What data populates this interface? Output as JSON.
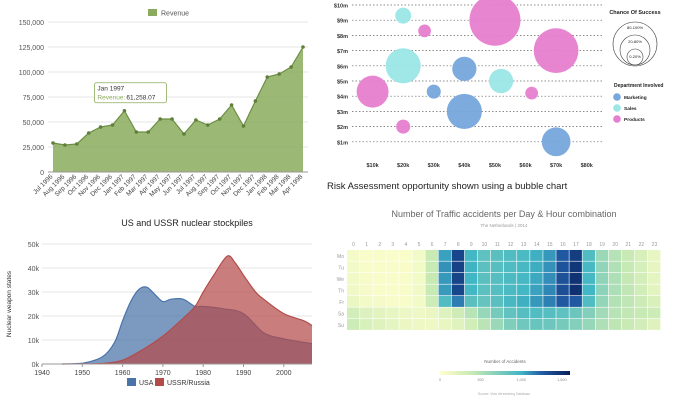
{
  "chart_data": [
    {
      "id": "revenue",
      "type": "area",
      "legend": "Revenue",
      "color": "#8aab5d",
      "ylim": [
        0,
        150000
      ],
      "yticks": [
        0,
        25000,
        50000,
        75000,
        100000,
        125000,
        150000
      ],
      "ytick_labels": [
        "0",
        "25,000",
        "50,000",
        "75,000",
        "100,000",
        "125,000",
        "150,000"
      ],
      "categories": [
        "Jul 1996",
        "Aug 1996",
        "Sep 1996",
        "Oct 1996",
        "Nov 1996",
        "Dec 1996",
        "Jan 1997",
        "Feb 1997",
        "Mar 1997",
        "Apr 1997",
        "May 1997",
        "Jun 1997",
        "Jul 1997",
        "Aug 1997",
        "Sep 1997",
        "Oct 1997",
        "Nov 1997",
        "Dec 1997",
        "Jan 1998",
        "Feb 1998",
        "Mar 1998",
        "Apr 1998"
      ],
      "values": [
        29000,
        27000,
        28000,
        39000,
        45000,
        47000,
        61258,
        40000,
        40000,
        53000,
        53000,
        38000,
        52000,
        47000,
        53000,
        67000,
        46000,
        71000,
        95000,
        98000,
        105000,
        125000
      ],
      "tooltip": {
        "title": "Jan 1997",
        "label": "Revenue:",
        "value": "61,258.07",
        "index": 6
      }
    },
    {
      "id": "risk",
      "type": "scatter",
      "caption": "Risk Assessment opportunity shown using a bubble chart",
      "xticks": [
        10,
        20,
        30,
        40,
        50,
        60,
        70,
        80
      ],
      "xtick_labels": [
        "$10k",
        "$20k",
        "$30k",
        "$40k",
        "$50k",
        "$60k",
        "$70k",
        "$80k"
      ],
      "yticks": [
        1,
        2,
        3,
        4,
        5,
        6,
        7,
        8,
        9,
        10
      ],
      "ytick_labels": [
        "$1m",
        "$2m",
        "$3m",
        "$4m",
        "$5m",
        "$6m",
        "$7m",
        "$8m",
        "$9m",
        "$10m"
      ],
      "xlim": [
        0,
        85
      ],
      "ylim": [
        0,
        10
      ],
      "size_legend_title": "Chance Of Success",
      "size_legend": [
        "80-100%",
        "20-80%",
        "0-20%"
      ],
      "category_legend_title": "Department Involved",
      "categories": [
        {
          "name": "Marketing",
          "color": "#77a7dc"
        },
        {
          "name": "Sales",
          "color": "#9be6e6"
        },
        {
          "name": "Products",
          "color": "#e67ecf"
        }
      ],
      "points": [
        {
          "x": 20,
          "y": 9.3,
          "r": 0.25,
          "cat": 1
        },
        {
          "x": 27,
          "y": 8.3,
          "r": 0.2,
          "cat": 2
        },
        {
          "x": 20,
          "y": 6.0,
          "r": 0.55,
          "cat": 1
        },
        {
          "x": 10,
          "y": 4.3,
          "r": 0.5,
          "cat": 2
        },
        {
          "x": 30,
          "y": 4.3,
          "r": 0.22,
          "cat": 0
        },
        {
          "x": 40,
          "y": 5.8,
          "r": 0.38,
          "cat": 0
        },
        {
          "x": 40,
          "y": 3.0,
          "r": 0.55,
          "cat": 0
        },
        {
          "x": 50,
          "y": 9.0,
          "r": 0.8,
          "cat": 2
        },
        {
          "x": 52,
          "y": 5.0,
          "r": 0.38,
          "cat": 1
        },
        {
          "x": 62,
          "y": 4.2,
          "r": 0.2,
          "cat": 2
        },
        {
          "x": 70,
          "y": 7.0,
          "r": 0.7,
          "cat": 2
        },
        {
          "x": 20,
          "y": 2.0,
          "r": 0.22,
          "cat": 2
        },
        {
          "x": 70,
          "y": 1.0,
          "r": 0.45,
          "cat": 0
        }
      ]
    },
    {
      "id": "nuclear",
      "type": "area",
      "title": "US and USSR nuclear stockpiles",
      "ylabel": "Nuclear weapon states",
      "xlim": [
        1940,
        2007
      ],
      "xticks": [
        1940,
        1950,
        1960,
        1970,
        1980,
        1990,
        2000
      ],
      "ylim": [
        0,
        50000
      ],
      "yticks": [
        0,
        10000,
        20000,
        30000,
        40000,
        50000
      ],
      "ytick_labels": [
        "0k",
        "10k",
        "20k",
        "30k",
        "40k",
        "50k"
      ],
      "series": [
        {
          "name": "USA",
          "color": "#4a73a8",
          "x": [
            1945,
            1950,
            1955,
            1958,
            1960,
            1962,
            1964,
            1966,
            1968,
            1970,
            1972,
            1975,
            1978,
            1980,
            1985,
            1990,
            1995,
            2000,
            2005,
            2007
          ],
          "y": [
            0,
            300,
            3000,
            9000,
            18000,
            26000,
            31000,
            32000,
            29000,
            26000,
            27000,
            27000,
            24000,
            24000,
            23000,
            21000,
            13000,
            10500,
            9000,
            8500
          ]
        },
        {
          "name": "USSR/Russia",
          "color": "#b44b4b",
          "x": [
            1945,
            1950,
            1955,
            1960,
            1965,
            1970,
            1975,
            1978,
            1980,
            1983,
            1986,
            1988,
            1990,
            1993,
            1995,
            2000,
            2005,
            2007
          ],
          "y": [
            0,
            50,
            200,
            1600,
            6000,
            11600,
            19000,
            24000,
            30000,
            38000,
            45000,
            42000,
            37000,
            30000,
            27000,
            21000,
            18000,
            16000
          ]
        }
      ]
    },
    {
      "id": "traffic",
      "type": "heatmap",
      "title": "Number of Traffic accidents per Day & Hour combination",
      "subtitle": "The Netherlands | 2014",
      "hours": [
        "0",
        "1",
        "2",
        "3",
        "4",
        "5",
        "6",
        "7",
        "8",
        "9",
        "10",
        "11",
        "12",
        "13",
        "14",
        "15",
        "16",
        "17",
        "18",
        "19",
        "20",
        "21",
        "22",
        "23"
      ],
      "days": [
        "Mo",
        "Tu",
        "We",
        "Th",
        "Fr",
        "Sa",
        "Su"
      ],
      "values": [
        [
          70,
          55,
          48,
          44,
          45,
          90,
          380,
          1050,
          1380,
          980,
          860,
          880,
          920,
          950,
          1010,
          1080,
          1280,
          1420,
          920,
          600,
          480,
          380,
          290,
          170
        ],
        [
          90,
          60,
          52,
          48,
          46,
          95,
          390,
          1100,
          1400,
          1000,
          870,
          890,
          930,
          960,
          1020,
          1100,
          1310,
          1460,
          960,
          640,
          500,
          400,
          300,
          180
        ],
        [
          100,
          65,
          55,
          50,
          48,
          95,
          395,
          1080,
          1390,
          990,
          880,
          900,
          940,
          970,
          1030,
          1110,
          1320,
          1480,
          970,
          650,
          510,
          410,
          310,
          190
        ],
        [
          110,
          70,
          58,
          52,
          50,
          98,
          390,
          1070,
          1380,
          980,
          870,
          900,
          950,
          980,
          1050,
          1130,
          1330,
          1490,
          990,
          660,
          520,
          430,
          330,
          200
        ],
        [
          150,
          90,
          70,
          60,
          55,
          90,
          350,
          920,
          1160,
          880,
          830,
          880,
          960,
          1010,
          1080,
          1150,
          1280,
          1280,
          920,
          630,
          490,
          430,
          360,
          270
        ],
        [
          320,
          250,
          210,
          180,
          140,
          120,
          150,
          240,
          340,
          470,
          620,
          760,
          850,
          900,
          920,
          900,
          860,
          800,
          700,
          560,
          470,
          420,
          400,
          360
        ],
        [
          360,
          280,
          230,
          190,
          150,
          120,
          120,
          160,
          220,
          330,
          460,
          600,
          720,
          790,
          820,
          800,
          760,
          700,
          620,
          510,
          440,
          380,
          320,
          230
        ]
      ],
      "vmax": 1600,
      "colorbar_label": "Number of Accidents",
      "colorbar_ticks": [
        "0",
        "500",
        "1,000",
        "1,500"
      ],
      "footer": "Source: Vida Verzekering Database"
    }
  ]
}
